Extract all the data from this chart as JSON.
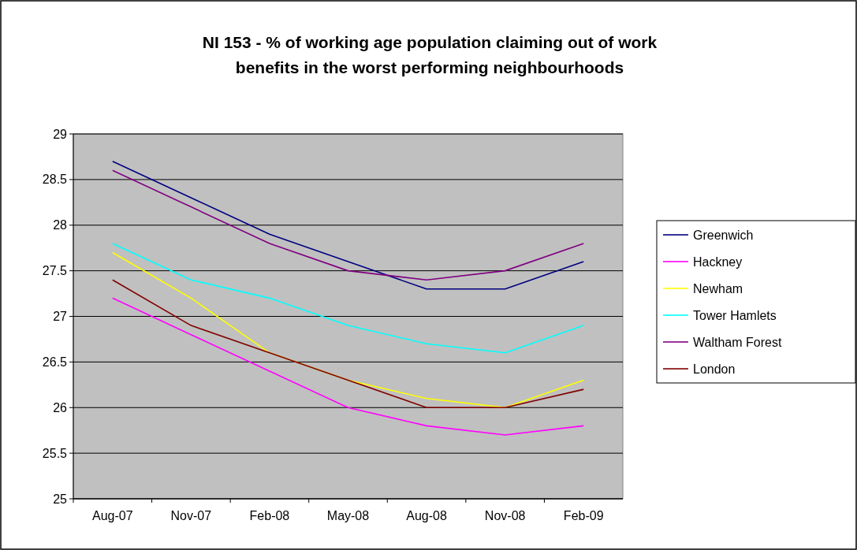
{
  "chart_data": {
    "type": "line",
    "title": "NI 153 - % of working age population claiming out of work benefits in the worst performing neighbourhoods",
    "categories": [
      "Aug-07",
      "Nov-07",
      "Feb-08",
      "May-08",
      "Aug-08",
      "Nov-08",
      "Feb-09"
    ],
    "series": [
      {
        "name": "Greenwich",
        "color": "#000080",
        "values": [
          28.7,
          28.3,
          27.9,
          27.6,
          27.3,
          27.3,
          27.6
        ]
      },
      {
        "name": "Hackney",
        "color": "#ff00ff",
        "values": [
          27.2,
          26.8,
          26.4,
          26.0,
          25.8,
          25.7,
          25.8
        ]
      },
      {
        "name": "Newham",
        "color": "#ffff00",
        "values": [
          27.7,
          27.2,
          26.6,
          26.3,
          26.1,
          26.0,
          26.3
        ]
      },
      {
        "name": "Tower Hamlets",
        "color": "#00ffff",
        "values": [
          27.8,
          27.4,
          27.2,
          26.9,
          26.7,
          26.6,
          26.9
        ]
      },
      {
        "name": "Waltham Forest",
        "color": "#800080",
        "values": [
          28.6,
          28.2,
          27.8,
          27.5,
          27.4,
          27.5,
          27.8
        ]
      },
      {
        "name": "London",
        "color": "#800000",
        "values": [
          27.4,
          26.9,
          26.6,
          26.3,
          26.0,
          26.0,
          26.2
        ]
      }
    ],
    "ylim": [
      25,
      29
    ],
    "yticks": [
      25,
      25.5,
      26,
      26.5,
      27,
      27.5,
      28,
      28.5,
      29
    ],
    "grid": "y",
    "legend": "right",
    "marker": "none",
    "line_style": "solid"
  }
}
